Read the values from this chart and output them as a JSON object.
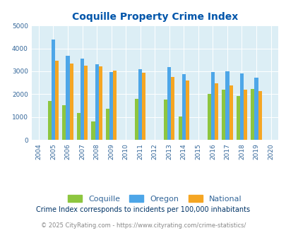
{
  "title": "Coquille Property Crime Index",
  "subtitle": "Crime Index corresponds to incidents per 100,000 inhabitants",
  "footer": "© 2025 CityRating.com - https://www.cityrating.com/crime-statistics/",
  "years": [
    2005,
    2006,
    2007,
    2008,
    2009,
    2011,
    2013,
    2014,
    2016,
    2017,
    2018,
    2019
  ],
  "coquille": [
    1700,
    1500,
    1175,
    800,
    1350,
    1800,
    1775,
    1025,
    2000,
    2200,
    1925,
    2225
  ],
  "oregon": [
    4400,
    3675,
    3550,
    3300,
    2975,
    3100,
    3175,
    2875,
    2975,
    3000,
    2900,
    2725
  ],
  "national": [
    3450,
    3350,
    3250,
    3225,
    3025,
    2925,
    2750,
    2600,
    2475,
    2375,
    2200,
    2125
  ],
  "coquille_color": "#8dc63f",
  "oregon_color": "#4da6e8",
  "national_color": "#f5a623",
  "bg_color": "#dceef5",
  "title_color": "#0055aa",
  "text_color": "#336699",
  "subtitle_color": "#003366",
  "footer_color": "#888888",
  "ylim": [
    0,
    5000
  ],
  "yticks": [
    0,
    1000,
    2000,
    3000,
    4000,
    5000
  ],
  "bar_width": 0.25,
  "all_years": [
    2004,
    2005,
    2006,
    2007,
    2008,
    2009,
    2010,
    2011,
    2012,
    2013,
    2014,
    2015,
    2016,
    2017,
    2018,
    2019,
    2020
  ]
}
